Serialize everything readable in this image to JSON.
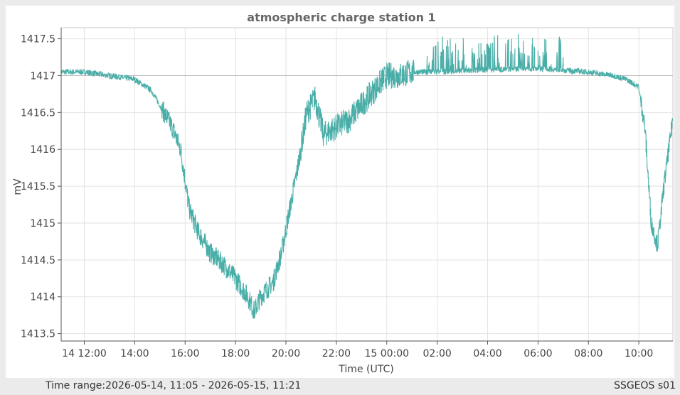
{
  "chart_data": {
    "type": "line",
    "title": "atmospheric charge station 1",
    "xlabel": "Time (UTC)",
    "ylabel": "mV",
    "ylim": [
      1413.4,
      1417.65
    ],
    "xlim": [
      "2026-05-14T11:05",
      "2026-05-15T11:21"
    ],
    "yticks": [
      1413.5,
      1414,
      1414.5,
      1415,
      1415.5,
      1416,
      1416.5,
      1417,
      1417.5
    ],
    "ytick_labels": [
      "1413.5",
      "1414",
      "1414.5",
      "1415",
      "1415.5",
      "1416",
      "1416.5",
      "1417",
      "1417.5"
    ],
    "xticks": [
      "2026-05-14T12:00",
      "2026-05-14T14:00",
      "2026-05-14T16:00",
      "2026-05-14T18:00",
      "2026-05-14T20:00",
      "2026-05-14T22:00",
      "2026-05-15T00:00",
      "2026-05-15T02:00",
      "2026-05-15T04:00",
      "2026-05-15T06:00",
      "2026-05-15T08:00",
      "2026-05-15T10:00"
    ],
    "xtick_labels": [
      "14 12:00",
      "14:00",
      "16:00",
      "18:00",
      "20:00",
      "22:00",
      "15 00:00",
      "02:00",
      "04:00",
      "06:00",
      "08:00",
      "10:00"
    ],
    "reference_line": 1417.0,
    "grid": true,
    "legend": false,
    "series": [
      {
        "color": "#4aaea8",
        "x": [
          "2026-05-14T11:05",
          "2026-05-14T12:00",
          "2026-05-14T13:00",
          "2026-05-14T14:00",
          "2026-05-14T14:40",
          "2026-05-14T15:10",
          "2026-05-14T15:30",
          "2026-05-14T15:50",
          "2026-05-14T16:10",
          "2026-05-14T16:30",
          "2026-05-14T17:00",
          "2026-05-14T17:30",
          "2026-05-14T18:00",
          "2026-05-14T18:30",
          "2026-05-14T18:45",
          "2026-05-14T19:00",
          "2026-05-14T19:30",
          "2026-05-14T19:50",
          "2026-05-14T20:10",
          "2026-05-14T20:30",
          "2026-05-14T20:50",
          "2026-05-14T21:10",
          "2026-05-14T21:30",
          "2026-05-14T22:00",
          "2026-05-14T22:30",
          "2026-05-14T23:00",
          "2026-05-14T23:30",
          "2026-05-15T00:00",
          "2026-05-15T00:30",
          "2026-05-15T01:00",
          "2026-05-15T02:00",
          "2026-05-15T04:00",
          "2026-05-15T06:00",
          "2026-05-15T08:00",
          "2026-05-15T09:00",
          "2026-05-15T09:30",
          "2026-05-15T10:00",
          "2026-05-15T10:15",
          "2026-05-15T10:30",
          "2026-05-15T10:45",
          "2026-05-15T11:00",
          "2026-05-15T11:21"
        ],
        "y": [
          1417.05,
          1417.05,
          1417.0,
          1416.95,
          1416.8,
          1416.5,
          1416.3,
          1416.0,
          1415.2,
          1414.9,
          1414.6,
          1414.45,
          1414.25,
          1414.0,
          1413.8,
          1414.0,
          1414.2,
          1414.6,
          1415.2,
          1415.8,
          1416.5,
          1416.7,
          1416.2,
          1416.3,
          1416.4,
          1416.6,
          1416.8,
          1417.0,
          1417.0,
          1417.05,
          1417.05,
          1417.08,
          1417.1,
          1417.05,
          1417.0,
          1416.95,
          1416.85,
          1416.3,
          1415.0,
          1414.7,
          1415.5,
          1416.4
        ]
      }
    ]
  },
  "footer": {
    "time_range": "Time range:2026-05-14, 11:05 - 2026-05-15, 11:21",
    "device": "SSGEOS s01"
  }
}
